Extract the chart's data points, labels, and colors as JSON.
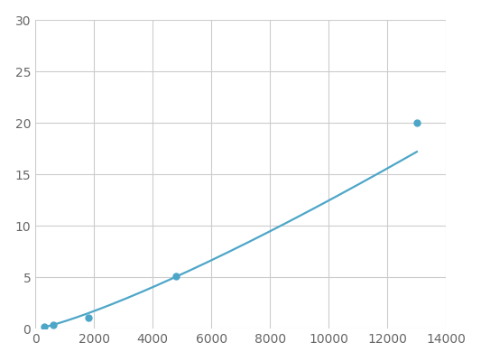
{
  "x_points": [
    300,
    600,
    1800,
    4800,
    13000
  ],
  "y_points": [
    0.2,
    0.4,
    1.1,
    5.1,
    20.0
  ],
  "line_color": "#4da6c8",
  "marker_color": "#4da6c8",
  "marker_size": 5,
  "linewidth": 1.6,
  "xlim": [
    0,
    14000
  ],
  "ylim": [
    0,
    30
  ],
  "xticks": [
    0,
    2000,
    4000,
    6000,
    8000,
    10000,
    12000,
    14000
  ],
  "yticks": [
    0,
    5,
    10,
    15,
    20,
    25,
    30
  ],
  "grid_color": "#cccccc",
  "grid_linewidth": 0.8,
  "background_color": "#ffffff",
  "spine_color": "#cccccc",
  "tick_label_color": "#666666",
  "tick_label_fontsize": 10
}
